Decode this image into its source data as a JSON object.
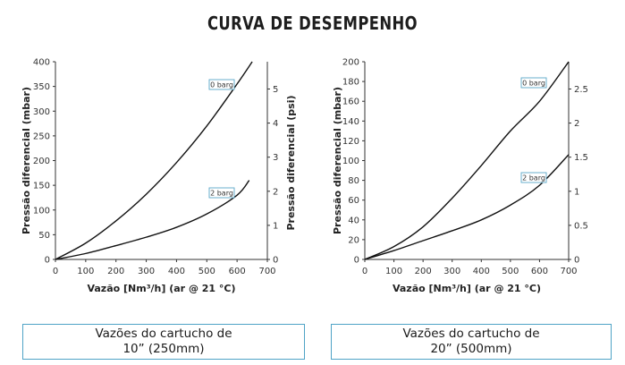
{
  "page_title": "CURVA DE DESEMPENHO",
  "chart_data": [
    {
      "type": "line",
      "x_ticks": [
        0,
        100,
        200,
        300,
        400,
        500,
        600,
        700
      ],
      "xlim": [
        0,
        700
      ],
      "xlabel": "Vazão [Nm³/h] (ar @ 21 °C)",
      "ylabel": "Pressão diferencial (mbar)",
      "ylim": [
        0,
        400
      ],
      "y_ticks": [
        0,
        50,
        100,
        150,
        200,
        250,
        300,
        350,
        400
      ],
      "y2label": "Pressão diferencial (psi)",
      "y2lim": [
        0,
        5.8
      ],
      "y2_ticks": [
        0,
        1,
        2,
        3,
        4,
        5
      ],
      "grid": false,
      "series": [
        {
          "name": "0 barg",
          "x": [
            0,
            100,
            200,
            300,
            400,
            500,
            600,
            650
          ],
          "y": [
            0,
            33,
            78,
            132,
            196,
            270,
            355,
            400
          ]
        },
        {
          "name": "2 barg",
          "x": [
            0,
            100,
            200,
            300,
            400,
            500,
            600,
            640
          ],
          "y": [
            0,
            12,
            28,
            45,
            65,
            92,
            130,
            160
          ]
        }
      ],
      "caption_line1": "Vazões do cartucho de",
      "caption_line2": "10” (250mm)"
    },
    {
      "type": "line",
      "x_ticks": [
        0,
        100,
        200,
        300,
        400,
        500,
        600,
        700
      ],
      "xlim": [
        0,
        700
      ],
      "xlabel": "Vazão [Nm³/h] (ar @ 21 °C)",
      "ylabel": "Pressão diferencial (mbar)",
      "ylim": [
        0,
        200
      ],
      "y_ticks": [
        0,
        20,
        40,
        60,
        80,
        100,
        120,
        140,
        160,
        180,
        200
      ],
      "y2label": "",
      "y2lim": [
        0,
        2.9
      ],
      "y2_ticks": [
        0,
        0.5,
        1,
        1.5,
        2,
        2.5
      ],
      "grid": false,
      "series": [
        {
          "name": "0 barg",
          "x": [
            0,
            100,
            200,
            300,
            400,
            500,
            600,
            700
          ],
          "y": [
            0,
            13,
            33,
            62,
            95,
            130,
            160,
            200
          ]
        },
        {
          "name": "2 barg",
          "x": [
            0,
            100,
            200,
            300,
            400,
            500,
            600,
            700
          ],
          "y": [
            0,
            9,
            19,
            29,
            40,
            55,
            75,
            106
          ]
        }
      ],
      "caption_line1": "Vazões do cartucho de",
      "caption_line2": "20” (500mm)"
    }
  ]
}
